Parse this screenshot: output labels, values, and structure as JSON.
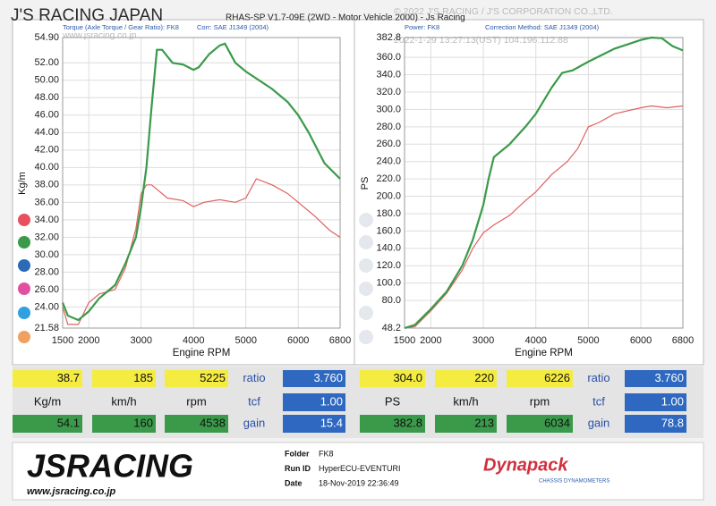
{
  "header": {
    "brand": "J'S RACING JAPAN",
    "software": "RHAS-SP V1.7-09E  (2WD - Motor Vehicle 2000) - Js Racing",
    "watermark": "© 2022 J'S RACING / J'S CORPORATION CO.,LTD.",
    "stamp": "2022-1-29 13:27:13(UST) 104.196.112.88",
    "url": "www.jsracing.co.jp"
  },
  "chart_data": [
    {
      "type": "line",
      "title": "Torque (Axle Torque / Gear Ratio): FK8",
      "subtitle": "Corr: SAE J1349 (2004)",
      "x_label": "Engine RPM",
      "y_label": "Kg/m",
      "grid": true,
      "xlim": [
        1500,
        6800
      ],
      "xticks": [
        1500,
        2000,
        3000,
        4000,
        5000,
        6000,
        6800
      ],
      "ylim": [
        21.58,
        54.9
      ],
      "yticks": [
        21.58,
        {
          "value": 24,
          "label": "24.00"
        },
        {
          "value": 26,
          "label": "26.00"
        },
        {
          "value": 28,
          "label": "28.00"
        },
        {
          "value": 30,
          "label": "30.00"
        },
        {
          "value": 32,
          "label": "32.00"
        },
        {
          "value": 34,
          "label": "34.00"
        },
        {
          "value": 36,
          "label": "36.00"
        },
        {
          "value": 38,
          "label": "38.00"
        },
        {
          "value": 40,
          "label": "40.00"
        },
        {
          "value": 42,
          "label": "42.00"
        },
        {
          "value": 44,
          "label": "44.00"
        },
        {
          "value": 46,
          "label": "46.00"
        },
        {
          "value": 48,
          "label": "48.00"
        },
        {
          "value": 50,
          "label": "50.00"
        },
        {
          "value": 52,
          "label": "52.00"
        },
        {
          "value": 54.9,
          "label": "54.90"
        }
      ],
      "series": [
        {
          "color": "#3a9a4a",
          "x": [
            1500,
            1600,
            1800,
            2000,
            2200,
            2500,
            2700,
            2900,
            3000,
            3100,
            3200,
            3300,
            3400,
            3600,
            3800,
            4000,
            4100,
            4300,
            4500,
            4600,
            4800,
            5000,
            5500,
            5800,
            6000,
            6200,
            6500,
            6800
          ],
          "values": [
            24.5,
            23,
            22.5,
            23.5,
            25,
            26.5,
            29,
            32,
            35.5,
            40,
            47,
            53.5,
            53.5,
            52,
            51.8,
            51.2,
            51.5,
            53,
            54,
            54.2,
            52,
            51,
            49,
            47.5,
            46,
            44,
            40.5,
            38.7
          ]
        },
        {
          "color": "#e06060",
          "x": [
            1500,
            1600,
            1800,
            2000,
            2200,
            2500,
            2700,
            2900,
            3000,
            3100,
            3200,
            3500,
            3800,
            4000,
            4200,
            4500,
            4800,
            5000,
            5200,
            5500,
            5800,
            6000,
            6300,
            6600,
            6800
          ],
          "values": [
            24,
            22,
            22,
            24.5,
            25.5,
            26,
            28.5,
            33,
            37,
            38,
            38,
            36.5,
            36.2,
            35.5,
            36,
            36.3,
            36,
            36.5,
            38.7,
            38,
            37,
            36,
            34.5,
            32.8,
            32
          ]
        }
      ]
    },
    {
      "type": "line",
      "title": "Power: FK8",
      "subtitle": "Correction Method: SAE J1349 (2004)",
      "x_label": "Engine RPM",
      "y_label": "PS",
      "grid": true,
      "xlim": [
        1500,
        6800
      ],
      "xticks": [
        1500,
        2000,
        3000,
        4000,
        5000,
        6000,
        6800
      ],
      "ylim": [
        48.2,
        382.8
      ],
      "yticks": [
        48.2,
        {
          "value": 80,
          "label": "80.0"
        },
        {
          "value": 100,
          "label": "100.0"
        },
        {
          "value": 120,
          "label": "120.0"
        },
        {
          "value": 140,
          "label": "140.0"
        },
        {
          "value": 160,
          "label": "160.0"
        },
        {
          "value": 180,
          "label": "180.0"
        },
        {
          "value": 200,
          "label": "200.0"
        },
        {
          "value": 220,
          "label": "220.0"
        },
        {
          "value": 240,
          "label": "240.0"
        },
        {
          "value": 260,
          "label": "260.0"
        },
        {
          "value": 280,
          "label": "280.0"
        },
        {
          "value": 300,
          "label": "300.0"
        },
        {
          "value": 320,
          "label": "320.0"
        },
        {
          "value": 340,
          "label": "340.0"
        },
        {
          "value": 360,
          "label": "360.0"
        },
        382.8
      ],
      "series": [
        {
          "color": "#3a9a4a",
          "x": [
            1500,
            1700,
            2000,
            2300,
            2600,
            2800,
            3000,
            3100,
            3200,
            3500,
            3800,
            4000,
            4300,
            4500,
            4700,
            5000,
            5500,
            6000,
            6200,
            6400,
            6600,
            6800
          ],
          "values": [
            48.2,
            52,
            70,
            90,
            120,
            150,
            190,
            220,
            245,
            260,
            280,
            295,
            325,
            342,
            345,
            355,
            370,
            380,
            382.8,
            382,
            373,
            368
          ]
        },
        {
          "color": "#e06060",
          "x": [
            1500,
            1700,
            2000,
            2300,
            2600,
            2800,
            3000,
            3200,
            3500,
            3800,
            4000,
            4300,
            4600,
            4800,
            5000,
            5200,
            5500,
            6000,
            6200,
            6500,
            6800
          ],
          "values": [
            48.2,
            50,
            68,
            88,
            115,
            140,
            158,
            167,
            178,
            195,
            205,
            225,
            240,
            255,
            280,
            285,
            295,
            302,
            304,
            302,
            304
          ]
        }
      ]
    }
  ],
  "readout": [
    {
      "rows": [
        [
          "38.7",
          "185",
          "5225",
          "ratio",
          "3.760"
        ],
        [
          "Kg/m",
          "km/h",
          "rpm",
          "tcf",
          "1.00"
        ],
        [
          "54.1",
          "160",
          "4538",
          "gain",
          "15.4"
        ]
      ]
    },
    {
      "rows": [
        [
          "304.0",
          "220",
          "6226",
          "ratio",
          "3.760"
        ],
        [
          "PS",
          "km/h",
          "rpm",
          "tcf",
          "1.00"
        ],
        [
          "382.8",
          "213",
          "6034",
          "gain",
          "78.8"
        ]
      ]
    }
  ],
  "footer": {
    "logo": "JSRACING",
    "logo_url": "www.jsracing.co.jp",
    "fields": [
      {
        "label": "Folder",
        "value": "FK8"
      },
      {
        "label": "Run ID",
        "value": "HyperECU-EVENTURI"
      },
      {
        "label": "Date",
        "value": "18-Nov-2019  22:36:49"
      }
    ],
    "brand": "Dynapack",
    "brand_tagline": "CHASSIS DYNAMOMETERS"
  }
}
